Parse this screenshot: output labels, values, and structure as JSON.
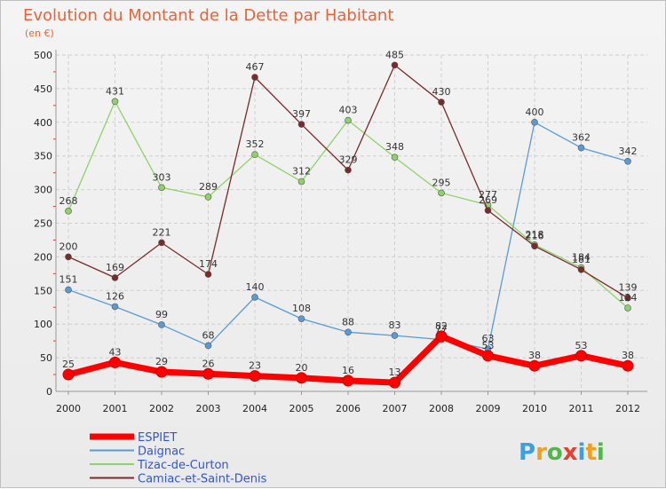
{
  "chart_data": {
    "type": "line",
    "title": "Evolution du Montant de la Dette par Habitant",
    "subtitle": "(en €)",
    "categories": [
      "2000",
      "2001",
      "2002",
      "2003",
      "2004",
      "2005",
      "2006",
      "2007",
      "2008",
      "2009",
      "2010",
      "2011",
      "2012"
    ],
    "ylim": [
      0,
      500
    ],
    "yticks": [
      0,
      50,
      100,
      150,
      200,
      250,
      300,
      350,
      400,
      450,
      500
    ],
    "grid": true,
    "legend_position": "bottom-left",
    "series": [
      {
        "name": "ESPIET",
        "color": "#ff0000",
        "values": [
          25,
          43,
          29,
          26,
          23,
          20,
          16,
          13,
          82,
          53,
          38,
          53,
          38
        ]
      },
      {
        "name": "Daignac",
        "color": "#5a9bd5",
        "values": [
          151,
          126,
          99,
          68,
          140,
          108,
          88,
          83,
          77,
          63,
          400,
          362,
          342
        ]
      },
      {
        "name": "Tizac-de-Curton",
        "color": "#8fd16a",
        "values": [
          268,
          431,
          303,
          289,
          352,
          312,
          403,
          348,
          295,
          277,
          218,
          184,
          124
        ]
      },
      {
        "name": "Camiac-et-Saint-Denis",
        "color": "#7a2a2a",
        "values": [
          200,
          169,
          221,
          174,
          467,
          397,
          329,
          485,
          430,
          269,
          216,
          181,
          139
        ]
      }
    ]
  },
  "logo": {
    "letters": [
      "P",
      "r",
      "o",
      "x",
      "i",
      "t",
      "i"
    ],
    "colors": [
      "#3aa0e0",
      "#f0a020",
      "#50b848",
      "#e84030",
      "#3aa0e0",
      "#f0a020",
      "#50b848"
    ]
  }
}
